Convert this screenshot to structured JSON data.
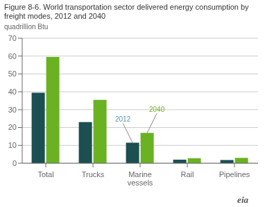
{
  "chart_data": {
    "type": "bar",
    "title": "Figure 8-6. World transportation sector delivered energy consumption by freight modes, 2012 and 2040",
    "ylabel": "quadrillion Btu",
    "categories": [
      "Total",
      "Trucks",
      "Marine\nvessels",
      "Rail",
      "Pipelines"
    ],
    "series": [
      {
        "name": "2012",
        "color": "#1b4f52",
        "values": [
          39.5,
          23.0,
          11.5,
          2.0,
          1.8
        ]
      },
      {
        "name": "2040",
        "color": "#6ab222",
        "values": [
          59.5,
          35.5,
          17.0,
          2.8,
          3.0
        ]
      }
    ],
    "ylim": [
      0,
      70
    ],
    "yticks": [
      0,
      10,
      20,
      30,
      40,
      50,
      60,
      70
    ],
    "grid": true,
    "annotations": [
      {
        "text": "2012",
        "series": "2012",
        "category": "Marine\nvessels",
        "color": "#5a9ab0"
      },
      {
        "text": "2040",
        "series": "2040",
        "category": "Marine\nvessels",
        "color": "#6ab222"
      },
      {
        "text": "eia"
      }
    ]
  }
}
